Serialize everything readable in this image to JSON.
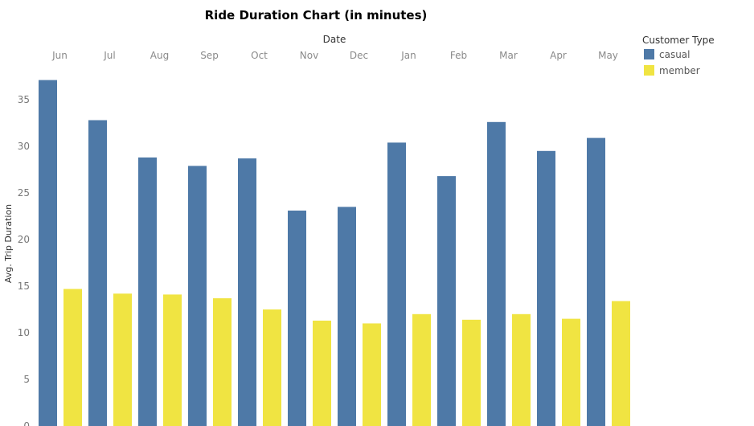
{
  "chart_data": {
    "type": "bar",
    "title": "Ride Duration Chart (in minutes)",
    "column_header": "Date",
    "xlabel": "",
    "ylabel": "Avg. Trip Duration",
    "categories": [
      "Jun",
      "Jul",
      "Aug",
      "Sep",
      "Oct",
      "Nov",
      "Dec",
      "Jan",
      "Feb",
      "Mar",
      "Apr",
      "May"
    ],
    "series": [
      {
        "name": "casual",
        "color": "#4e79a7",
        "values": [
          37.1,
          32.8,
          28.8,
          27.9,
          28.7,
          23.1,
          23.5,
          30.4,
          26.8,
          32.6,
          29.5,
          30.9
        ]
      },
      {
        "name": "member",
        "color": "#f0e442",
        "values": [
          14.7,
          14.2,
          14.1,
          13.7,
          12.5,
          11.3,
          11.0,
          12.0,
          11.4,
          12.0,
          11.5,
          13.4
        ]
      }
    ],
    "yticks": [
      0,
      5,
      10,
      15,
      20,
      25,
      30,
      35
    ],
    "ylim": [
      0,
      37.9
    ],
    "legend_title": "Customer Type",
    "legend_position": "top-right",
    "grid": false
  }
}
